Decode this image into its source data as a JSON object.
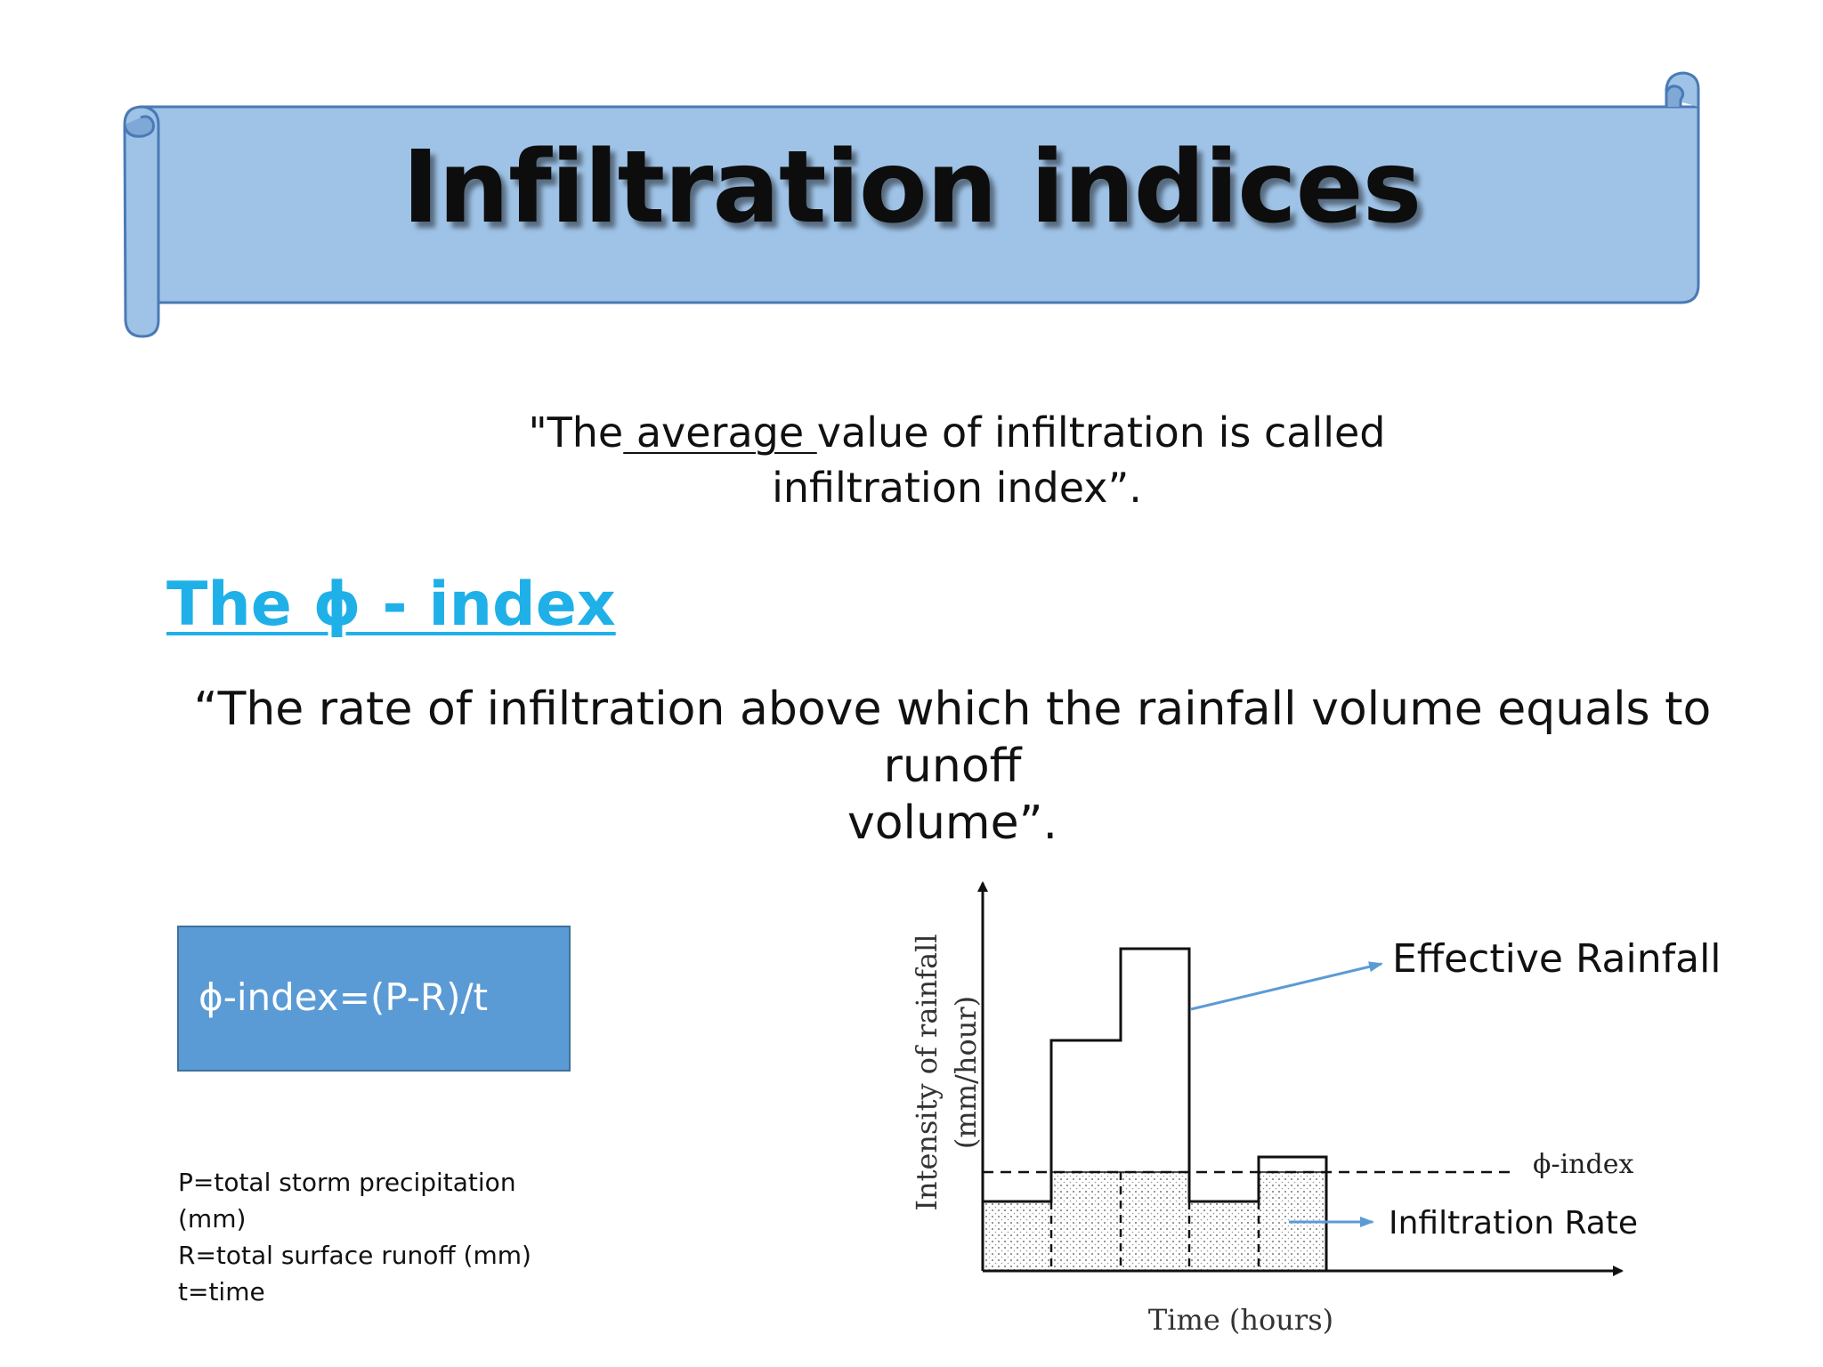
{
  "slide": {
    "title": "Infiltration indices",
    "definition": {
      "prefix": "\"The",
      "underlined": " average ",
      "suffix": "value of infiltration is called",
      "line2": "infiltration index”."
    },
    "phi_heading": "The ϕ - index",
    "phi_definition": {
      "line1": "“The rate of infiltration above which the rainfall volume equals to runoff",
      "line2": "volume”."
    },
    "formula": "ϕ-index=(P-R)/t",
    "legend": [
      "P=total storm precipitation",
      "(mm)",
      "R=total surface runoff (mm)",
      "t=time"
    ]
  },
  "diagram": {
    "y_axis_label_line1": "Intensity of rainfall",
    "y_axis_label_line2": "(mm/hour)",
    "x_axis_label": "Time (hours)",
    "phi_index_label": "ϕ-index",
    "callout_effective_rainfall": "Effective Rainfall",
    "callout_infiltration_rate": "Infiltration Rate",
    "arrow_color": "#5b9bd5",
    "banner_fill": "#9fc3e7",
    "banner_stroke": "#4a7ab5",
    "heading_color": "#1fb0e8"
  }
}
